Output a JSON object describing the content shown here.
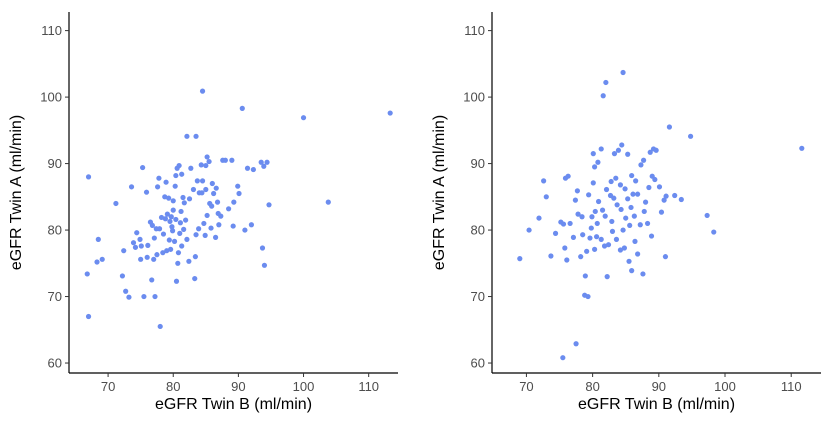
{
  "chart_data": [
    {
      "type": "scatter",
      "title": "",
      "xlabel": "eGFR Twin B (ml/min)",
      "ylabel": "eGFR Twin A (ml/min)",
      "xlim": [
        64,
        114.5
      ],
      "ylim": [
        58.5,
        112.8
      ],
      "xticks": [
        70,
        80,
        90,
        100,
        110
      ],
      "yticks": [
        60,
        70,
        80,
        90,
        100,
        110
      ],
      "grid": false,
      "point_color": "#6b8cef",
      "points": [
        [
          67.0,
          88.0
        ],
        [
          67.0,
          67.0
        ],
        [
          66.8,
          73.4
        ],
        [
          68.3,
          75.2
        ],
        [
          68.5,
          78.6
        ],
        [
          69.1,
          75.6
        ],
        [
          71.2,
          84.0
        ],
        [
          72.2,
          73.1
        ],
        [
          72.4,
          76.9
        ],
        [
          72.7,
          70.8
        ],
        [
          73.2,
          69.9
        ],
        [
          73.6,
          86.5
        ],
        [
          73.9,
          78.1
        ],
        [
          74.4,
          79.6
        ],
        [
          75.3,
          89.4
        ],
        [
          75.9,
          85.7
        ],
        [
          75.0,
          75.6
        ],
        [
          75.1,
          77.6
        ],
        [
          76.1,
          77.7
        ],
        [
          75.5,
          70.0
        ],
        [
          76.5,
          81.2
        ],
        [
          76.8,
          80.7
        ],
        [
          77.0,
          75.6
        ],
        [
          77.6,
          86.5
        ],
        [
          77.8,
          87.8
        ],
        [
          77.4,
          80.2
        ],
        [
          77.2,
          70.0
        ],
        [
          78.0,
          65.5
        ],
        [
          78.4,
          76.6
        ],
        [
          78.7,
          85.0
        ],
        [
          78.8,
          81.7
        ],
        [
          79.1,
          82.4
        ],
        [
          79.4,
          78.5
        ],
        [
          79.9,
          79.9
        ],
        [
          80.0,
          84.4
        ],
        [
          80.3,
          86.6
        ],
        [
          80.4,
          88.2
        ],
        [
          80.6,
          89.3
        ],
        [
          80.9,
          89.7
        ],
        [
          81.3,
          88.4
        ],
        [
          81.5,
          84.9
        ],
        [
          81.7,
          84.1
        ],
        [
          80.7,
          75.0
        ],
        [
          80.5,
          72.3
        ],
        [
          81.0,
          79.5
        ],
        [
          81.1,
          81.1
        ],
        [
          82.1,
          94.1
        ],
        [
          83.5,
          94.1
        ],
        [
          84.5,
          100.9
        ],
        [
          84.0,
          85.6
        ],
        [
          84.5,
          87.4
        ],
        [
          85.0,
          89.7
        ],
        [
          85.2,
          91.0
        ],
        [
          85.5,
          90.3
        ],
        [
          86.0,
          87.0
        ],
        [
          86.6,
          86.3
        ],
        [
          87.6,
          90.5
        ],
        [
          88.0,
          90.5
        ],
        [
          89.0,
          90.5
        ],
        [
          90.6,
          98.3
        ],
        [
          89.9,
          86.6
        ],
        [
          89.3,
          84.2
        ],
        [
          90.1,
          85.5
        ],
        [
          91.4,
          89.3
        ],
        [
          92.3,
          89.1
        ],
        [
          93.5,
          90.2
        ],
        [
          93.9,
          89.6
        ],
        [
          94.4,
          90.2
        ],
        [
          93.7,
          77.3
        ],
        [
          94.0,
          74.7
        ],
        [
          94.7,
          83.8
        ],
        [
          85.9,
          83.6
        ],
        [
          85.2,
          82.2
        ],
        [
          84.7,
          81.0
        ],
        [
          83.5,
          79.3
        ],
        [
          83.4,
          76.0
        ],
        [
          83.3,
          72.7
        ],
        [
          82.4,
          75.3
        ],
        [
          82.1,
          78.6
        ],
        [
          81.2,
          82.8
        ],
        [
          80.4,
          81.6
        ],
        [
          79.8,
          80.5
        ],
        [
          79.3,
          84.8
        ],
        [
          78.9,
          87.2
        ],
        [
          78.2,
          81.9
        ],
        [
          77.5,
          76.3
        ],
        [
          76.7,
          72.5
        ],
        [
          76.0,
          75.9
        ],
        [
          74.9,
          78.6
        ],
        [
          74.2,
          77.4
        ],
        [
          86.8,
          84.2
        ],
        [
          86.2,
          85.5
        ],
        [
          85.6,
          84.0
        ],
        [
          85.0,
          86.1
        ],
        [
          84.4,
          85.6
        ],
        [
          83.7,
          87.4
        ],
        [
          83.1,
          86.1
        ],
        [
          82.5,
          84.7
        ],
        [
          81.9,
          81.5
        ],
        [
          81.6,
          80.1
        ],
        [
          81.3,
          77.6
        ],
        [
          80.8,
          76.6
        ],
        [
          80.2,
          78.3
        ],
        [
          79.6,
          77.1
        ],
        [
          79.0,
          76.9
        ],
        [
          78.5,
          79.4
        ],
        [
          77.9,
          80.2
        ],
        [
          77.1,
          78.8
        ],
        [
          85.8,
          80.3
        ],
        [
          86.5,
          78.9
        ],
        [
          87.3,
          82.1
        ],
        [
          88.5,
          83.2
        ],
        [
          89.2,
          80.6
        ],
        [
          91.0,
          80.0
        ],
        [
          92.0,
          80.8
        ],
        [
          100.0,
          96.9
        ],
        [
          103.8,
          84.2
        ],
        [
          113.3,
          97.6
        ],
        [
          84.3,
          89.8
        ],
        [
          82.7,
          89.3
        ],
        [
          83.9,
          80.2
        ],
        [
          84.9,
          79.2
        ],
        [
          87.0,
          80.8
        ],
        [
          86.9,
          82.5
        ],
        [
          79.5,
          81.3
        ],
        [
          80.0,
          83.0
        ],
        [
          79.7,
          82.0
        ]
      ]
    },
    {
      "type": "scatter",
      "title": "",
      "xlabel": "eGFR Twin B (ml/min)",
      "ylabel": "eGFR Twin A (ml/min)",
      "xlim": [
        64.8,
        114.5
      ],
      "ylim": [
        58.5,
        112.8
      ],
      "xticks": [
        70,
        80,
        90,
        100,
        110
      ],
      "yticks": [
        60,
        70,
        80,
        90,
        100,
        110
      ],
      "grid": false,
      "point_color": "#6b8cef",
      "points": [
        [
          69.0,
          75.7
        ],
        [
          70.4,
          80.0
        ],
        [
          71.9,
          81.8
        ],
        [
          72.6,
          87.4
        ],
        [
          73.7,
          76.1
        ],
        [
          73.0,
          85.0
        ],
        [
          74.4,
          79.5
        ],
        [
          75.2,
          81.2
        ],
        [
          75.6,
          80.9
        ],
        [
          75.8,
          77.3
        ],
        [
          76.1,
          75.5
        ],
        [
          75.5,
          60.8
        ],
        [
          75.9,
          87.8
        ],
        [
          76.3,
          88.1
        ],
        [
          77.1,
          78.9
        ],
        [
          77.4,
          84.5
        ],
        [
          77.7,
          85.9
        ],
        [
          77.5,
          62.9
        ],
        [
          78.4,
          82.0
        ],
        [
          78.5,
          79.3
        ],
        [
          78.8,
          70.2
        ],
        [
          78.9,
          73.1
        ],
        [
          79.3,
          70.0
        ],
        [
          79.4,
          85.3
        ],
        [
          79.9,
          82.0
        ],
        [
          80.1,
          87.1
        ],
        [
          80.3,
          89.5
        ],
        [
          80.8,
          90.2
        ],
        [
          80.1,
          91.5
        ],
        [
          81.3,
          92.2
        ],
        [
          81.6,
          100.2
        ],
        [
          82.0,
          102.2
        ],
        [
          82.8,
          87.3
        ],
        [
          83.3,
          91.5
        ],
        [
          83.9,
          92.0
        ],
        [
          84.4,
          92.8
        ],
        [
          84.6,
          103.7
        ],
        [
          85.3,
          91.4
        ],
        [
          85.9,
          88.2
        ],
        [
          86.1,
          85.4
        ],
        [
          86.8,
          85.4
        ],
        [
          87.3,
          89.8
        ],
        [
          87.7,
          90.5
        ],
        [
          88.7,
          91.7
        ],
        [
          89.2,
          92.2
        ],
        [
          89.6,
          92.0
        ],
        [
          89.0,
          88.1
        ],
        [
          89.4,
          87.6
        ],
        [
          90.1,
          86.5
        ],
        [
          90.8,
          84.5
        ],
        [
          91.6,
          95.5
        ],
        [
          91.1,
          85.1
        ],
        [
          92.4,
          85.2
        ],
        [
          93.4,
          84.6
        ],
        [
          94.8,
          94.1
        ],
        [
          90.4,
          82.7
        ],
        [
          91.0,
          76.0
        ],
        [
          87.6,
          73.4
        ],
        [
          86.8,
          76.4
        ],
        [
          85.5,
          75.3
        ],
        [
          84.8,
          77.3
        ],
        [
          84.2,
          77.0
        ],
        [
          83.6,
          78.6
        ],
        [
          83.0,
          79.8
        ],
        [
          82.4,
          77.8
        ],
        [
          81.8,
          77.6
        ],
        [
          81.3,
          78.6
        ],
        [
          80.6,
          79.0
        ],
        [
          80.3,
          77.1
        ],
        [
          82.2,
          73.0
        ],
        [
          85.9,
          73.9
        ],
        [
          86.4,
          78.3
        ],
        [
          87.2,
          80.8
        ],
        [
          87.8,
          82.8
        ],
        [
          88.3,
          81.0
        ],
        [
          85.0,
          81.8
        ],
        [
          84.3,
          83.1
        ],
        [
          83.7,
          83.8
        ],
        [
          83.2,
          84.8
        ],
        [
          82.7,
          85.2
        ],
        [
          82.1,
          86.1
        ],
        [
          81.5,
          83.0
        ],
        [
          80.9,
          84.3
        ],
        [
          80.4,
          82.8
        ],
        [
          79.6,
          78.8
        ],
        [
          79.1,
          76.8
        ],
        [
          78.2,
          76.0
        ],
        [
          77.8,
          82.4
        ],
        [
          76.6,
          81.0
        ],
        [
          85.3,
          84.7
        ],
        [
          85.8,
          83.4
        ],
        [
          86.3,
          82.1
        ],
        [
          84.9,
          86.2
        ],
        [
          84.2,
          86.8
        ],
        [
          83.5,
          87.8
        ],
        [
          86.5,
          87.4
        ],
        [
          88.5,
          86.4
        ],
        [
          88.0,
          84.2
        ],
        [
          97.3,
          82.2
        ],
        [
          98.3,
          79.7
        ],
        [
          111.6,
          92.3
        ],
        [
          88.9,
          79.1
        ],
        [
          85.6,
          80.7
        ],
        [
          84.6,
          80.0
        ],
        [
          82.9,
          81.3
        ],
        [
          81.9,
          82.1
        ],
        [
          80.7,
          81.0
        ],
        [
          79.8,
          80.3
        ]
      ]
    }
  ]
}
